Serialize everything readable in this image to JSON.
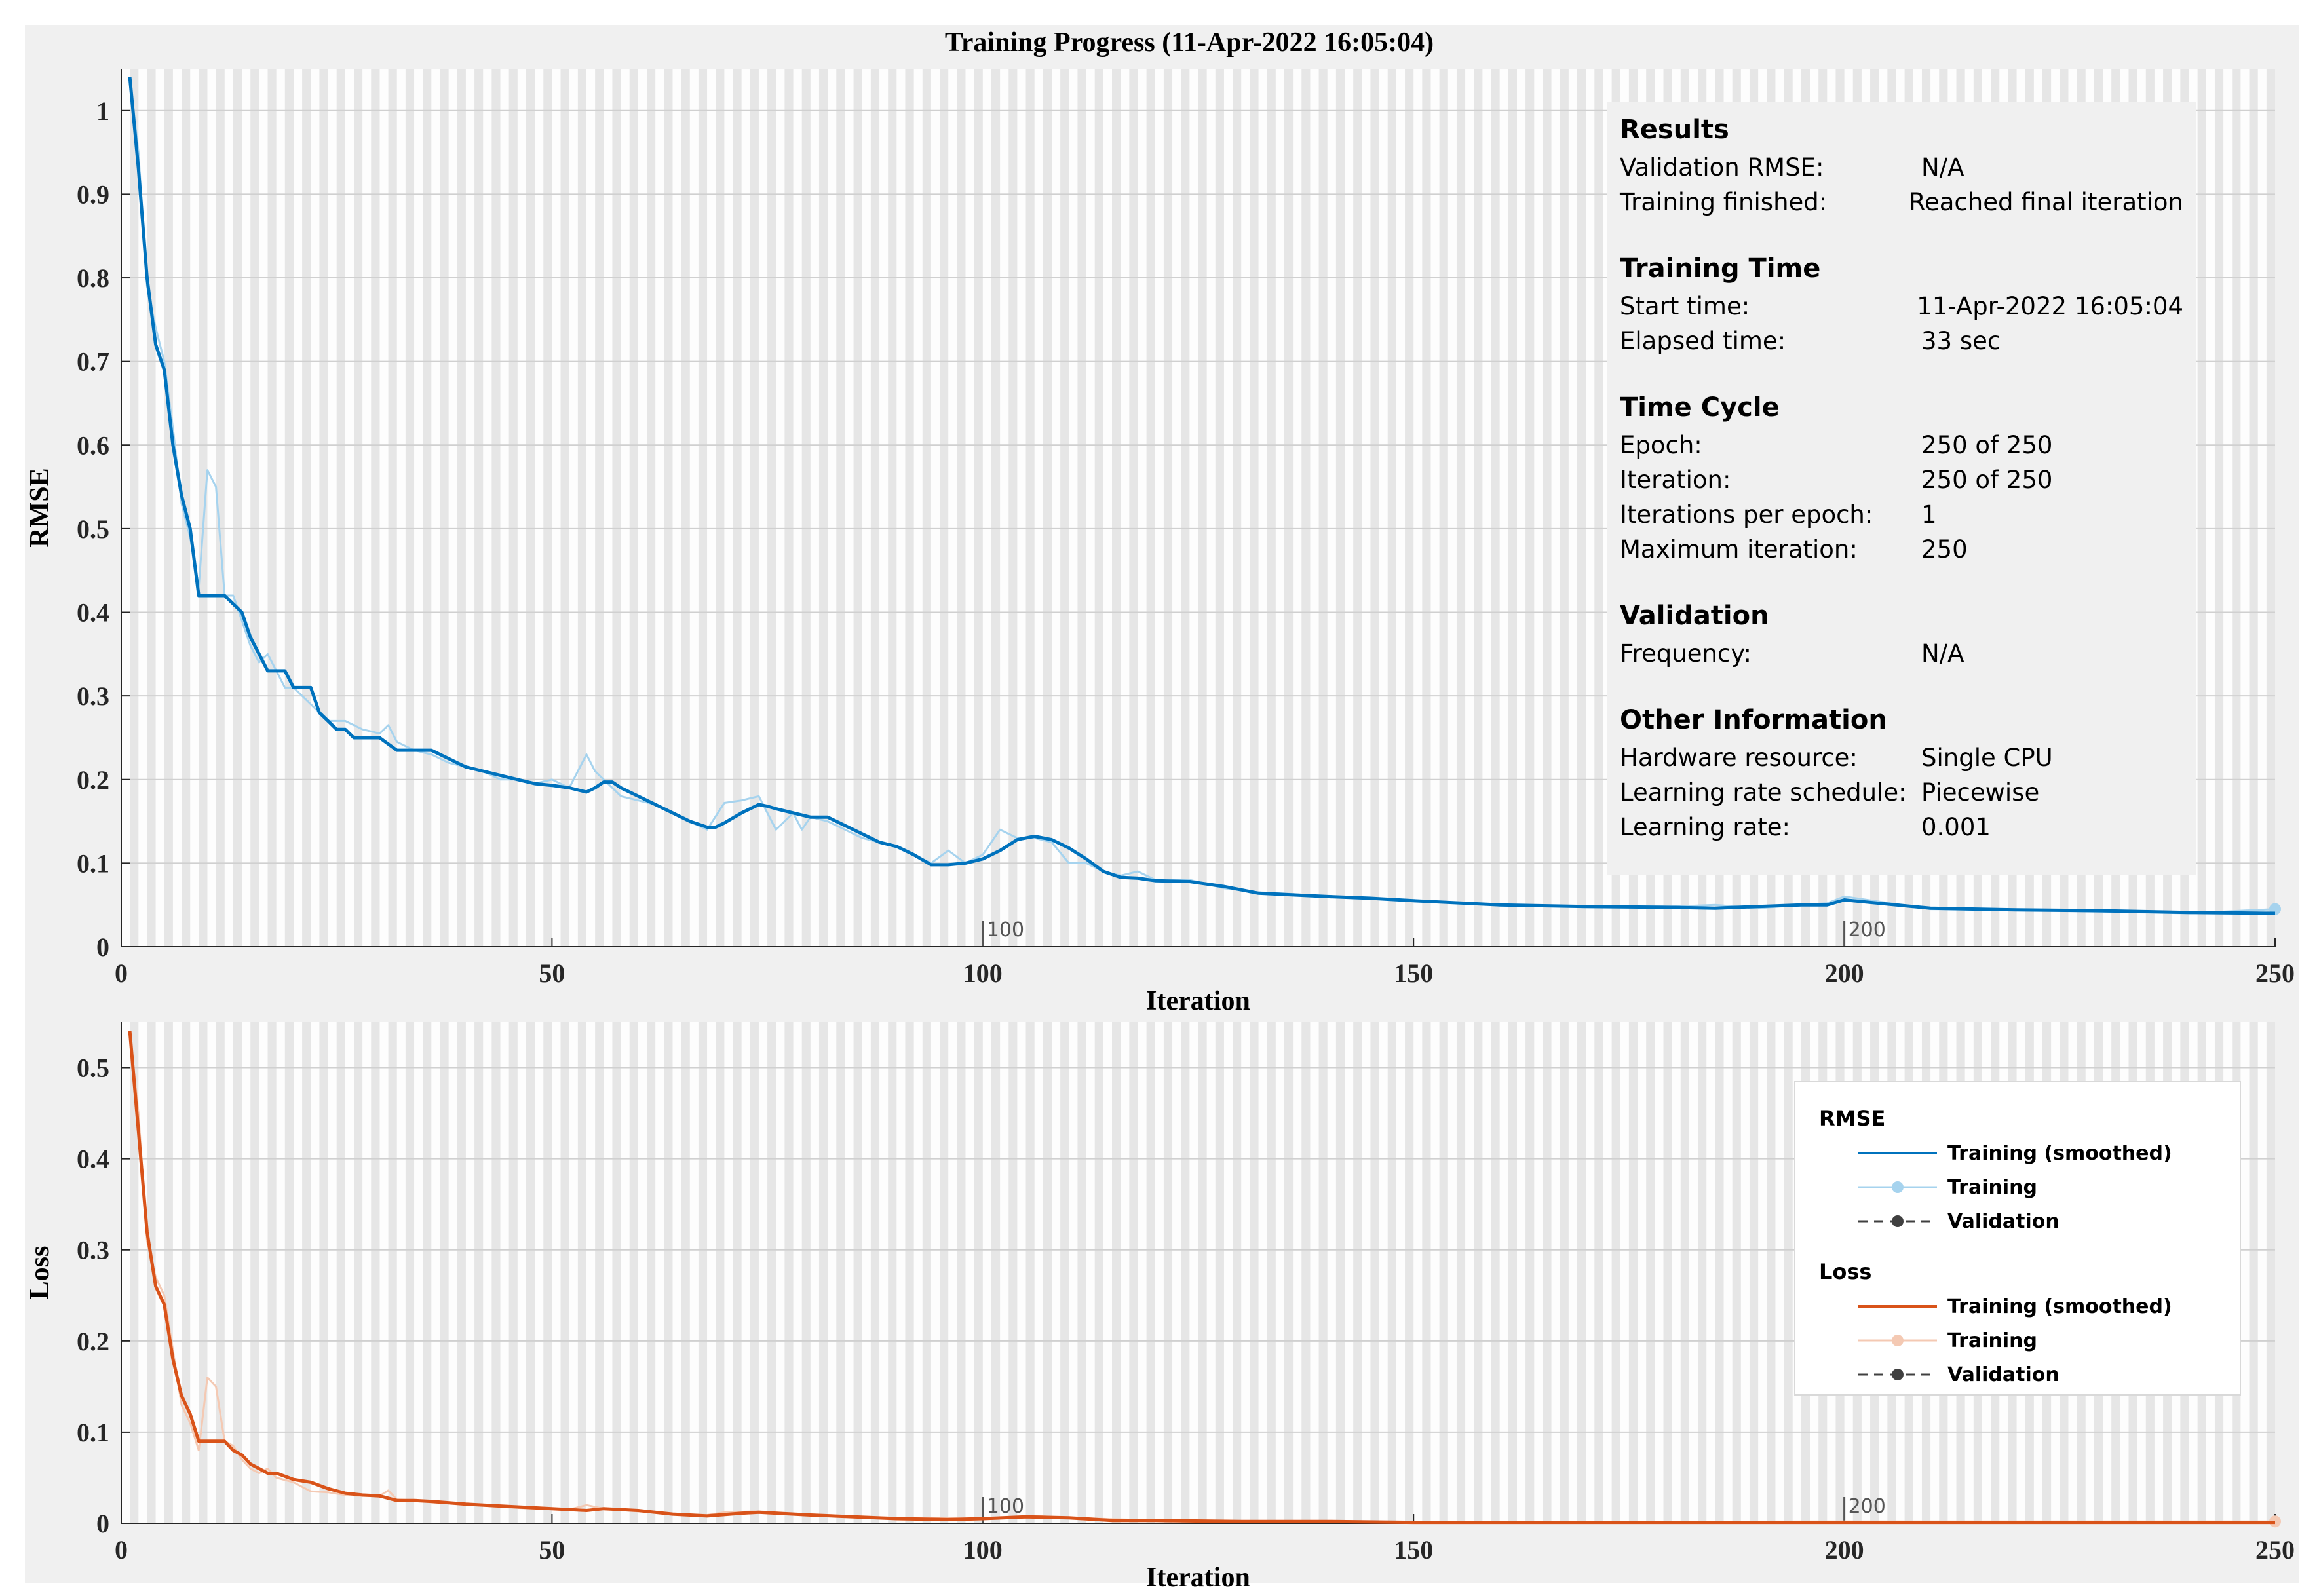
{
  "figure": {
    "title": "Training Progress (11-Apr-2022 16:05:04)"
  },
  "chart_data": [
    {
      "type": "line",
      "title": "Training Progress (11-Apr-2022 16:05:04)",
      "xlabel": "Iteration",
      "ylabel": "RMSE",
      "xlim": [
        0,
        250
      ],
      "ylim": [
        0,
        1.05
      ],
      "xticks": [
        0,
        50,
        100,
        150,
        200,
        250
      ],
      "yticks": [
        0,
        0.1,
        0.2,
        0.3,
        0.4,
        0.5,
        0.6,
        0.7,
        0.8,
        0.9,
        1
      ],
      "epoch_markers": [
        100,
        200
      ],
      "grid": true,
      "series": [
        {
          "name": "Training (smoothed)",
          "color": "#0072bd",
          "x": [
            1,
            2,
            3,
            4,
            5,
            6,
            7,
            8,
            9,
            10,
            12,
            13,
            14,
            15,
            16,
            17,
            18,
            19,
            20,
            21,
            22,
            23,
            24,
            25,
            26,
            27,
            28,
            29,
            30,
            32,
            34,
            36,
            38,
            40,
            42,
            44,
            46,
            48,
            50,
            52,
            54,
            55,
            56,
            57,
            58,
            60,
            62,
            64,
            66,
            68,
            69,
            70,
            72,
            74,
            75,
            76,
            78,
            80,
            82,
            84,
            86,
            88,
            90,
            92,
            94,
            96,
            98,
            100,
            102,
            104,
            106,
            108,
            110,
            112,
            114,
            116,
            118,
            120,
            124,
            128,
            132,
            136,
            140,
            145,
            150,
            160,
            170,
            180,
            185,
            190,
            195,
            198,
            200,
            210,
            220,
            230,
            240,
            250
          ],
          "values": [
            1.04,
            0.93,
            0.8,
            0.72,
            0.69,
            0.6,
            0.54,
            0.5,
            0.42,
            0.42,
            0.42,
            0.41,
            0.4,
            0.37,
            0.35,
            0.33,
            0.33,
            0.33,
            0.31,
            0.31,
            0.31,
            0.28,
            0.27,
            0.26,
            0.26,
            0.25,
            0.25,
            0.25,
            0.25,
            0.235,
            0.235,
            0.235,
            0.225,
            0.215,
            0.21,
            0.205,
            0.2,
            0.195,
            0.193,
            0.19,
            0.185,
            0.19,
            0.197,
            0.197,
            0.19,
            0.18,
            0.17,
            0.16,
            0.15,
            0.143,
            0.143,
            0.148,
            0.16,
            0.17,
            0.168,
            0.165,
            0.16,
            0.155,
            0.155,
            0.145,
            0.135,
            0.125,
            0.12,
            0.11,
            0.098,
            0.098,
            0.1,
            0.105,
            0.115,
            0.128,
            0.132,
            0.128,
            0.118,
            0.105,
            0.09,
            0.083,
            0.082,
            0.079,
            0.078,
            0.072,
            0.064,
            0.062,
            0.06,
            0.058,
            0.055,
            0.05,
            0.048,
            0.047,
            0.046,
            0.048,
            0.05,
            0.05,
            0.056,
            0.046,
            0.044,
            0.043,
            0.041,
            0.04
          ]
        },
        {
          "name": "Training",
          "color": "#a6d3ee",
          "x": [
            1,
            2,
            3,
            4,
            5,
            6,
            7,
            8,
            9,
            10,
            11,
            12,
            13,
            14,
            15,
            16,
            17,
            18,
            19,
            20,
            22,
            24,
            26,
            28,
            30,
            31,
            32,
            34,
            36,
            38,
            40,
            42,
            44,
            46,
            48,
            50,
            52,
            54,
            55,
            56,
            58,
            60,
            62,
            64,
            66,
            68,
            70,
            72,
            74,
            75,
            76,
            78,
            79,
            80,
            82,
            84,
            86,
            88,
            90,
            92,
            94,
            96,
            98,
            100,
            102,
            104,
            106,
            108,
            110,
            112,
            114,
            116,
            118,
            120,
            124,
            128,
            132,
            136,
            140,
            145,
            150,
            160,
            170,
            180,
            185,
            190,
            195,
            198,
            200,
            210,
            220,
            230,
            240,
            250
          ],
          "values": [
            1.04,
            0.95,
            0.79,
            0.74,
            0.7,
            0.62,
            0.53,
            0.49,
            0.43,
            0.57,
            0.55,
            0.42,
            0.42,
            0.39,
            0.36,
            0.34,
            0.35,
            0.33,
            0.31,
            0.31,
            0.29,
            0.27,
            0.27,
            0.26,
            0.255,
            0.265,
            0.245,
            0.235,
            0.23,
            0.22,
            0.215,
            0.21,
            0.2,
            0.2,
            0.195,
            0.2,
            0.19,
            0.23,
            0.21,
            0.2,
            0.18,
            0.175,
            0.17,
            0.16,
            0.15,
            0.14,
            0.172,
            0.175,
            0.18,
            0.16,
            0.14,
            0.16,
            0.14,
            0.155,
            0.15,
            0.14,
            0.13,
            0.125,
            0.12,
            0.11,
            0.1,
            0.115,
            0.1,
            0.11,
            0.14,
            0.13,
            0.13,
            0.125,
            0.1,
            0.1,
            0.09,
            0.085,
            0.09,
            0.08,
            0.08,
            0.07,
            0.065,
            0.063,
            0.06,
            0.058,
            0.055,
            0.05,
            0.048,
            0.048,
            0.05,
            0.046,
            0.05,
            0.052,
            0.06,
            0.045,
            0.044,
            0.042,
            0.04,
            0.045
          ]
        },
        {
          "name": "Validation",
          "color": "#404040",
          "x": [],
          "values": []
        }
      ]
    },
    {
      "type": "line",
      "xlabel": "Iteration",
      "ylabel": "Loss",
      "xlim": [
        0,
        250
      ],
      "ylim": [
        0,
        0.55
      ],
      "xticks": [
        0,
        50,
        100,
        150,
        200,
        250
      ],
      "yticks": [
        0,
        0.1,
        0.2,
        0.3,
        0.4,
        0.5
      ],
      "epoch_markers": [
        100,
        200
      ],
      "grid": true,
      "series": [
        {
          "name": "Training (smoothed)",
          "color": "#d95319",
          "x": [
            1,
            2,
            3,
            4,
            5,
            6,
            7,
            8,
            9,
            10,
            12,
            13,
            14,
            15,
            16,
            17,
            18,
            20,
            22,
            24,
            26,
            28,
            30,
            32,
            34,
            36,
            40,
            44,
            48,
            52,
            54,
            56,
            60,
            64,
            68,
            72,
            74,
            80,
            90,
            96,
            100,
            105,
            110,
            115,
            120,
            130,
            140,
            150,
            200,
            250
          ],
          "values": [
            0.54,
            0.43,
            0.32,
            0.26,
            0.24,
            0.18,
            0.14,
            0.12,
            0.09,
            0.09,
            0.09,
            0.08,
            0.075,
            0.065,
            0.06,
            0.055,
            0.055,
            0.048,
            0.045,
            0.038,
            0.033,
            0.031,
            0.03,
            0.025,
            0.025,
            0.024,
            0.021,
            0.019,
            0.017,
            0.015,
            0.014,
            0.016,
            0.014,
            0.01,
            0.008,
            0.011,
            0.012,
            0.009,
            0.005,
            0.004,
            0.005,
            0.007,
            0.006,
            0.003,
            0.003,
            0.002,
            0.002,
            0.001,
            0.001,
            0.001
          ]
        },
        {
          "name": "Training",
          "color": "#f4c9b3",
          "x": [
            1,
            2,
            3,
            4,
            5,
            6,
            7,
            8,
            9,
            10,
            11,
            12,
            13,
            14,
            15,
            16,
            17,
            18,
            20,
            22,
            24,
            26,
            28,
            30,
            31,
            32,
            34,
            36,
            40,
            44,
            48,
            52,
            54,
            56,
            60,
            64,
            68,
            70,
            74,
            80,
            90,
            100,
            106,
            110,
            120,
            150,
            200,
            250
          ],
          "values": [
            0.54,
            0.45,
            0.31,
            0.27,
            0.25,
            0.19,
            0.13,
            0.11,
            0.08,
            0.16,
            0.15,
            0.09,
            0.085,
            0.07,
            0.06,
            0.055,
            0.06,
            0.05,
            0.045,
            0.035,
            0.034,
            0.031,
            0.03,
            0.03,
            0.036,
            0.026,
            0.025,
            0.023,
            0.021,
            0.018,
            0.016,
            0.015,
            0.02,
            0.016,
            0.013,
            0.01,
            0.009,
            0.012,
            0.013,
            0.009,
            0.006,
            0.005,
            0.008,
            0.006,
            0.003,
            0.001,
            0.002,
            0.002
          ]
        },
        {
          "name": "Validation",
          "color": "#404040",
          "x": [],
          "values": []
        }
      ]
    }
  ],
  "info_panel": {
    "sections": [
      {
        "title": "Results",
        "rows": [
          {
            "key": "Validation RMSE:",
            "value": "N/A"
          },
          {
            "key": "Training finished:",
            "value": "Reached final iteration"
          }
        ]
      },
      {
        "title": "Training Time",
        "rows": [
          {
            "key": "Start time:",
            "value": "11-Apr-2022 16:05:04"
          },
          {
            "key": "Elapsed time:",
            "value": "33 sec"
          }
        ]
      },
      {
        "title": "Time Cycle",
        "rows": [
          {
            "key": "Epoch:",
            "value": "250 of 250"
          },
          {
            "key": "Iteration:",
            "value": "250 of 250"
          },
          {
            "key": "Iterations per epoch:",
            "value": "1"
          },
          {
            "key": "Maximum iteration:",
            "value": "250"
          }
        ]
      },
      {
        "title": "Validation",
        "rows": [
          {
            "key": "Frequency:",
            "value": "N/A"
          }
        ]
      },
      {
        "title": "Other Information",
        "rows": [
          {
            "key": "Hardware resource:",
            "value": "Single CPU"
          },
          {
            "key": "Learning rate schedule:",
            "value": "Piecewise"
          },
          {
            "key": "Learning rate:",
            "value": "0.001"
          }
        ]
      }
    ]
  },
  "legend": {
    "groups": [
      {
        "title": "RMSE",
        "items": [
          {
            "label": "Training (smoothed)",
            "style": "solid",
            "color": "#0072bd"
          },
          {
            "label": "Training",
            "style": "marker",
            "color": "#a6d3ee"
          },
          {
            "label": "Validation",
            "style": "dashed-marker",
            "color": "#404040"
          }
        ]
      },
      {
        "title": "Loss",
        "items": [
          {
            "label": "Training (smoothed)",
            "style": "solid",
            "color": "#d95319"
          },
          {
            "label": "Training",
            "style": "marker",
            "color": "#f4c9b3"
          },
          {
            "label": "Validation",
            "style": "dashed-marker",
            "color": "#404040"
          }
        ]
      }
    ]
  }
}
